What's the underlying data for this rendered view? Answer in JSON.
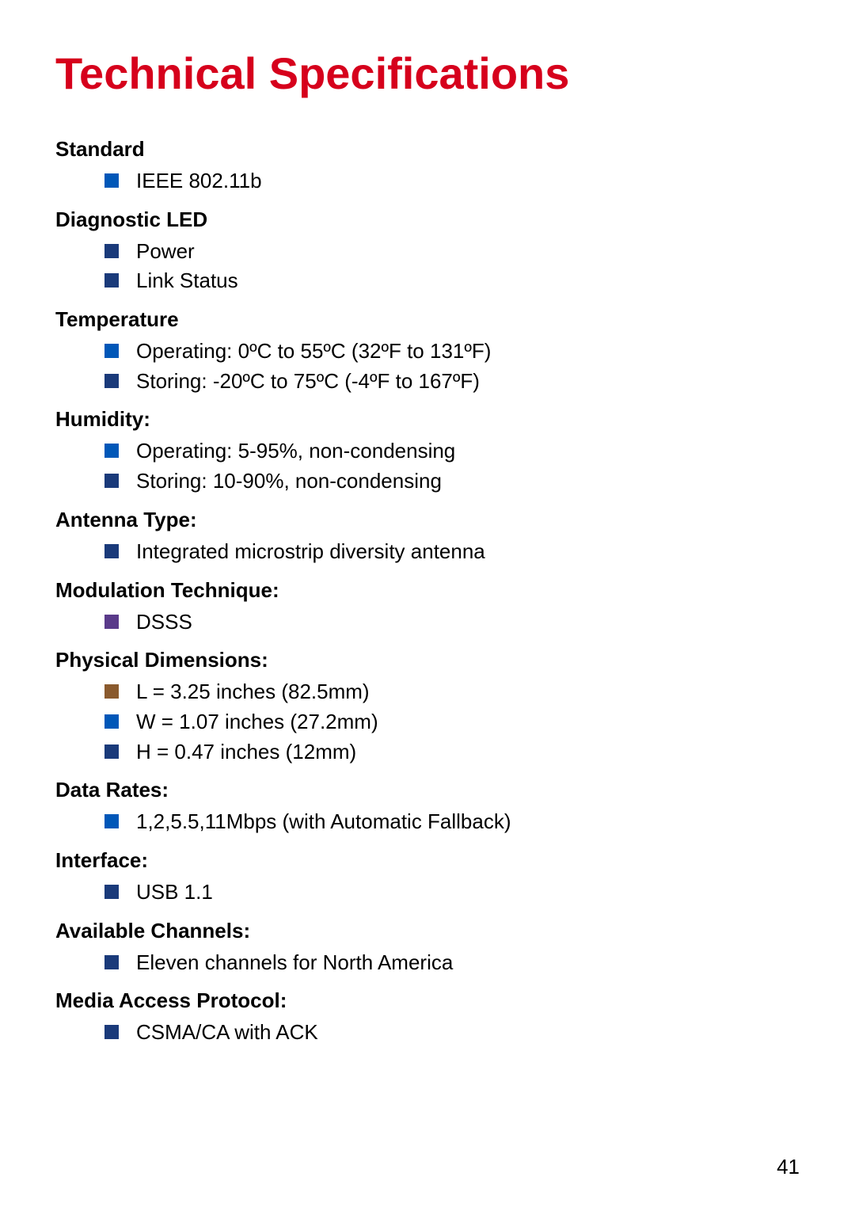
{
  "title": "Technical Specifications",
  "page_number": "41",
  "bullet_colors": {
    "blue": "#0057b8",
    "teal": "#008b9f",
    "navy": "#1a3a7a",
    "brown": "#8a5a2e",
    "purple": "#5a3a8a"
  },
  "sections": [
    {
      "heading": "Standard",
      "items": [
        {
          "text": "IEEE 802.11b",
          "color": "#0057b8"
        }
      ]
    },
    {
      "heading": "Diagnostic LED",
      "items": [
        {
          "text": "Power",
          "color": "#1a3a7a"
        },
        {
          "text": "Link Status",
          "color": "#1a3a7a"
        }
      ]
    },
    {
      "heading": "Temperature",
      "items": [
        {
          "text": "Operating: 0ºC to 55ºC (32ºF to 131ºF)",
          "color": "#0057b8"
        },
        {
          "text": "Storing: -20ºC to 75ºC (-4ºF to 167ºF)",
          "color": "#1a3a7a"
        }
      ]
    },
    {
      "heading": "Humidity:",
      "items": [
        {
          "text": "Operating: 5-95%, non-condensing",
          "color": "#0057b8"
        },
        {
          "text": "Storing: 10-90%, non-condensing",
          "color": "#1a3a7a"
        }
      ]
    },
    {
      "heading": "Antenna Type:",
      "items": [
        {
          "text": "Integrated microstrip diversity antenna",
          "color": "#1a3a7a"
        }
      ]
    },
    {
      "heading": "Modulation Technique:",
      "items": [
        {
          "text": "DSSS",
          "color": "#5a3a8a"
        }
      ]
    },
    {
      "heading": "Physical Dimensions:",
      "items": [
        {
          "text": "L =  3.25 inches (82.5mm)",
          "color": "#8a5a2e"
        },
        {
          "text": "W = 1.07 inches (27.2mm)",
          "color": "#0057b8"
        },
        {
          "text": "H =  0.47 inches (12mm)",
          "color": "#1a3a7a"
        }
      ]
    },
    {
      "heading": "Data Rates:",
      "items": [
        {
          "text": "1,2,5.5,11Mbps (with Automatic Fallback)",
          "color": "#0057b8"
        }
      ]
    },
    {
      "heading": "Interface:",
      "items": [
        {
          "text": "USB 1.1",
          "color": "#1a3a7a"
        }
      ]
    },
    {
      "heading": "Available Channels:",
      "items": [
        {
          "text": "Eleven channels for North America",
          "color": "#1a3a7a"
        }
      ]
    },
    {
      "heading": "Media Access Protocol:",
      "items": [
        {
          "text": "CSMA/CA with ACK",
          "color": "#1a3a7a"
        }
      ]
    }
  ]
}
